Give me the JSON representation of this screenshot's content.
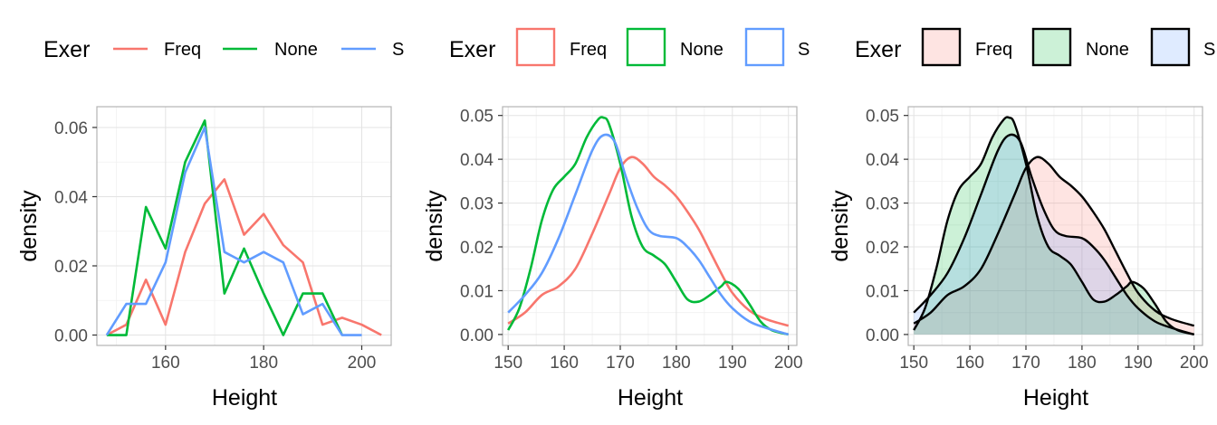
{
  "legend": {
    "title": "Exer",
    "keys": [
      "Freq",
      "None",
      "S"
    ],
    "colors": {
      "Freq": "#F8766D",
      "None": "#00BA38",
      "S": "#619CFF"
    }
  },
  "chart_data": [
    {
      "type": "line",
      "subtype": "frequency-polygon",
      "xlabel": "Height",
      "ylabel": "density",
      "xlim": [
        146,
        206
      ],
      "ylim": [
        -0.003,
        0.066
      ],
      "xticks": [
        160,
        180,
        200
      ],
      "xtick_labels": [
        "160",
        "180",
        "200"
      ],
      "yticks": [
        0,
        0.02,
        0.04,
        0.06
      ],
      "ytick_labels": [
        "0.00",
        "0.02",
        "0.04",
        "0.06"
      ],
      "grid": true,
      "legend_position": "top",
      "series": [
        {
          "name": "Freq",
          "color": "#F8766D",
          "x": [
            148,
            152,
            156,
            160,
            164,
            168,
            172,
            176,
            180,
            184,
            188,
            192,
            196,
            200,
            204
          ],
          "y": [
            0.0,
            0.003,
            0.016,
            0.003,
            0.024,
            0.038,
            0.045,
            0.029,
            0.035,
            0.026,
            0.021,
            0.003,
            0.005,
            0.003,
            0.0
          ]
        },
        {
          "name": "None",
          "color": "#00BA38",
          "x": [
            148,
            152,
            156,
            160,
            164,
            168,
            172,
            176,
            180,
            184,
            188,
            192,
            196
          ],
          "y": [
            0.0,
            0.0,
            0.037,
            0.025,
            0.05,
            0.062,
            0.012,
            0.025,
            0.012,
            0.0,
            0.012,
            0.012,
            0.0
          ]
        },
        {
          "name": "S",
          "color": "#619CFF",
          "x": [
            148,
            152,
            156,
            160,
            164,
            168,
            172,
            176,
            180,
            184,
            188,
            192,
            196,
            200
          ],
          "y": [
            0.0,
            0.009,
            0.009,
            0.021,
            0.047,
            0.06,
            0.024,
            0.021,
            0.024,
            0.021,
            0.006,
            0.009,
            0.0,
            0.0
          ]
        }
      ]
    },
    {
      "type": "line",
      "subtype": "density",
      "xlabel": "Height",
      "ylabel": "density",
      "xlim": [
        149,
        201.5
      ],
      "ylim": [
        -0.0025,
        0.052
      ],
      "xticks": [
        150,
        160,
        170,
        180,
        190,
        200
      ],
      "xtick_labels": [
        "150",
        "160",
        "170",
        "180",
        "190",
        "200"
      ],
      "yticks": [
        0,
        0.01,
        0.02,
        0.03,
        0.04,
        0.05
      ],
      "ytick_labels": [
        "0.00",
        "0.01",
        "0.02",
        "0.03",
        "0.04",
        "0.05"
      ],
      "grid": true,
      "legend_position": "top",
      "series": [
        {
          "name": "Freq",
          "color": "#F8766D",
          "x": [
            150,
            153,
            156,
            159,
            162,
            165,
            168,
            170,
            172,
            174,
            176,
            178,
            180,
            182,
            184,
            186,
            188,
            190,
            193,
            196,
            200
          ],
          "y": [
            0.0025,
            0.005,
            0.009,
            0.011,
            0.015,
            0.023,
            0.032,
            0.038,
            0.0405,
            0.039,
            0.036,
            0.034,
            0.0315,
            0.028,
            0.024,
            0.019,
            0.014,
            0.0095,
            0.0055,
            0.0035,
            0.002
          ]
        },
        {
          "name": "None",
          "color": "#00BA38",
          "x": [
            150,
            152,
            154,
            156,
            158,
            160,
            162,
            164,
            166,
            167,
            168,
            170,
            172,
            174,
            176,
            178,
            180,
            182,
            184,
            186,
            188,
            189,
            191,
            193,
            195,
            197,
            200
          ],
          "y": [
            0.001,
            0.006,
            0.015,
            0.026,
            0.033,
            0.036,
            0.039,
            0.045,
            0.049,
            0.0495,
            0.048,
            0.039,
            0.027,
            0.02,
            0.018,
            0.016,
            0.012,
            0.008,
            0.0075,
            0.009,
            0.011,
            0.012,
            0.0105,
            0.007,
            0.003,
            0.001,
            0.0
          ]
        },
        {
          "name": "S",
          "color": "#619CFF",
          "x": [
            150,
            153,
            156,
            159,
            162,
            165,
            167,
            169,
            171,
            173,
            175,
            177,
            180,
            182,
            184,
            186,
            188,
            190,
            193,
            196,
            200
          ],
          "y": [
            0.005,
            0.009,
            0.014,
            0.022,
            0.032,
            0.042,
            0.0455,
            0.044,
            0.036,
            0.029,
            0.024,
            0.0225,
            0.022,
            0.02,
            0.017,
            0.013,
            0.009,
            0.006,
            0.003,
            0.0015,
            0.0
          ]
        }
      ]
    },
    {
      "type": "area",
      "subtype": "density",
      "xlabel": "Height",
      "ylabel": "density",
      "xlim": [
        149,
        201.5
      ],
      "ylim": [
        -0.0025,
        0.052
      ],
      "xticks": [
        150,
        160,
        170,
        180,
        190,
        200
      ],
      "xtick_labels": [
        "150",
        "160",
        "170",
        "180",
        "190",
        "200"
      ],
      "yticks": [
        0,
        0.01,
        0.02,
        0.03,
        0.04,
        0.05
      ],
      "ytick_labels": [
        "0.00",
        "0.01",
        "0.02",
        "0.03",
        "0.04",
        "0.05"
      ],
      "grid": true,
      "legend_position": "top",
      "outline_color": "#000000",
      "fill_opacity": 0.2,
      "series_ref": 1
    }
  ]
}
